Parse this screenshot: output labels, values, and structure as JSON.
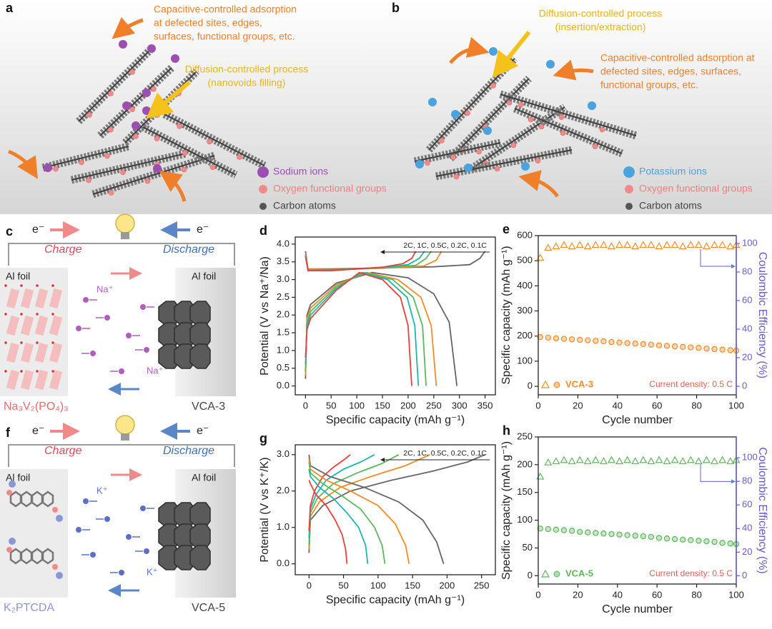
{
  "panel_a": {
    "label": "a",
    "capacitive_note": [
      "Capacitive-controlled adsorption",
      "at defected sites, edges,",
      "surfaces, functional groups, etc."
    ],
    "diffusion_note": [
      "Diffusion-controlled process",
      "(nanovoids filling)"
    ],
    "legend": [
      "Sodium ions",
      "Oxygen functional groups",
      "Carbon atoms"
    ]
  },
  "panel_b": {
    "label": "b",
    "diffusion_note": [
      "Diffusion-controlled process",
      "(insertion/extraction)"
    ],
    "capacitive_note": [
      "Capacitive-controlled adsorption at",
      "defected sites, edges, surfaces,",
      "functional groups, etc."
    ],
    "legend": [
      "Potassium ions",
      "Oxygen functional groups",
      "Carbon atoms"
    ]
  },
  "panel_c": {
    "label": "c",
    "electron_left": "e⁻",
    "electron_right": "e⁻",
    "charge": "Charge",
    "discharge": "Discharge",
    "foil_left": "Al foil",
    "foil_right": "Al foil",
    "ion_labels": [
      "Na⁺",
      "Na⁺"
    ],
    "cathode": "Na₃V₂(PO₄)₃",
    "anode": "VCA-3"
  },
  "panel_f": {
    "label": "f",
    "electron_left": "e⁻",
    "electron_right": "e⁻",
    "charge": "Charge",
    "discharge": "Discharge",
    "foil_left": "Al foil",
    "foil_right": "Al foil",
    "ion_labels": [
      "K⁺",
      "K⁺"
    ],
    "cathode": "K₂PTCDA",
    "anode": "VCA-5"
  },
  "chart_data": [
    {
      "type": "line",
      "label": "d",
      "xlabel": "Specific capacity (mAh g⁻¹)",
      "ylabel": "Potential (V vs Na⁺/Na)",
      "annotation": "2C, 1C, 0.5C, 0.2C, 0.1C",
      "xlim": [
        -20,
        370
      ],
      "ylim": [
        -0.25,
        4.2
      ],
      "xticks": [
        0,
        50,
        100,
        150,
        200,
        250,
        300,
        350
      ],
      "yticks": [
        {
          "value": 0,
          "label": "0.0"
        },
        0.5,
        {
          "value": 1,
          "label": "1.0"
        },
        1.5,
        {
          "value": 2,
          "label": "2.0"
        },
        2.5,
        {
          "value": 3,
          "label": "3.0"
        },
        3.5,
        {
          "value": 4,
          "label": "4.0"
        }
      ],
      "series": [
        {
          "color": "#666666",
          "x": [
            0,
            5,
            50,
            150,
            250,
            320,
            340,
            350
          ],
          "values": [
            3.8,
            3.3,
            3.3,
            3.33,
            3.36,
            3.42,
            3.6,
            3.8
          ]
        },
        {
          "color": "#f28c28",
          "x": [
            0,
            5,
            50,
            150,
            230,
            255,
            265
          ],
          "values": [
            3.75,
            3.3,
            3.28,
            3.32,
            3.38,
            3.55,
            3.8
          ]
        },
        {
          "color": "#5cb85c",
          "x": [
            0,
            5,
            50,
            150,
            215,
            235,
            245
          ],
          "values": [
            3.7,
            3.28,
            3.27,
            3.33,
            3.4,
            3.6,
            3.8
          ]
        },
        {
          "color": "#1fb5ad",
          "x": [
            0,
            5,
            50,
            150,
            200,
            222,
            232
          ],
          "values": [
            3.7,
            3.27,
            3.26,
            3.34,
            3.42,
            3.6,
            3.8
          ]
        },
        {
          "color": "#e8413c",
          "x": [
            0,
            5,
            50,
            150,
            190,
            207,
            215
          ],
          "values": [
            3.65,
            3.25,
            3.25,
            3.35,
            3.45,
            3.6,
            3.8
          ]
        },
        {
          "color": "#666666",
          "x": [
            0,
            3,
            10,
            60,
            130,
            200,
            250,
            280,
            295
          ],
          "values": [
            0.2,
            2.0,
            2.3,
            2.9,
            3.2,
            3.05,
            2.6,
            1.8,
            0.0
          ]
        },
        {
          "color": "#f28c28",
          "x": [
            0,
            3,
            10,
            60,
            120,
            180,
            225,
            245,
            255
          ],
          "values": [
            0.3,
            1.9,
            2.2,
            2.85,
            3.2,
            3.0,
            2.5,
            1.7,
            0.0
          ]
        },
        {
          "color": "#5cb85c",
          "x": [
            0,
            3,
            10,
            60,
            115,
            170,
            210,
            228,
            235
          ],
          "values": [
            0.4,
            1.8,
            2.1,
            2.8,
            3.2,
            3.0,
            2.5,
            1.7,
            0.0
          ]
        },
        {
          "color": "#1fb5ad",
          "x": [
            0,
            3,
            10,
            60,
            110,
            160,
            198,
            213,
            220
          ],
          "values": [
            0.6,
            1.7,
            2.0,
            2.75,
            3.2,
            3.0,
            2.5,
            1.7,
            0.0
          ]
        },
        {
          "color": "#e8413c",
          "x": [
            0,
            3,
            10,
            60,
            105,
            150,
            185,
            200,
            207
          ],
          "values": [
            0.8,
            1.6,
            1.9,
            2.7,
            3.2,
            3.0,
            2.5,
            1.7,
            0.0
          ]
        }
      ]
    },
    {
      "type": "dual_scatter",
      "label": "e",
      "xlabel": "Cycle number",
      "ylabel": "Specific capacity (mAh g⁻¹)",
      "y2label": "Coulombic Efficiency (%)",
      "legend": "VCA-3",
      "note": "Current density: 0.5 C",
      "xlim": [
        0,
        100
      ],
      "ylim": [
        -34,
        600
      ],
      "y2lim": [
        -6,
        105.5
      ],
      "xticks": [
        0,
        20,
        40,
        60,
        80,
        100
      ],
      "yticks": [
        0,
        100,
        200,
        300,
        400,
        500,
        600
      ],
      "y2ticks": [
        0,
        20,
        40,
        60,
        80,
        100
      ],
      "x": [
        1,
        5,
        9,
        13,
        17,
        21,
        25,
        29,
        33,
        37,
        41,
        45,
        49,
        53,
        57,
        61,
        65,
        69,
        73,
        77,
        81,
        85,
        89,
        93,
        97,
        100
      ],
      "series": [
        {
          "color": "#f28c28",
          "marker": "circle",
          "values": [
            196,
            194,
            191,
            189,
            187,
            185,
            183,
            181,
            179,
            176,
            174,
            172,
            170,
            168,
            166,
            163,
            161,
            159,
            157,
            155,
            153,
            150,
            148,
            146,
            144,
            142
          ]
        },
        {
          "color": "#f28c28",
          "marker": "triangle",
          "axis": "y2",
          "values": [
            90,
            97,
            98,
            99,
            98,
            99,
            98,
            99,
            99,
            98,
            99,
            99,
            98,
            99,
            99,
            98,
            99,
            99,
            98,
            99,
            99,
            98,
            99,
            99,
            98,
            99
          ]
        }
      ]
    },
    {
      "type": "line",
      "label": "g",
      "xlabel": "Specific capacity (mAh g⁻¹)",
      "ylabel": "Potential (V vs K⁺/K)",
      "annotation": "2C, 1C, 0.5C, 0.2C, 0.1C",
      "xlim": [
        -20,
        270
      ],
      "ylim": [
        -0.3,
        3.27
      ],
      "xticks": [
        0,
        50,
        100,
        150,
        200,
        250
      ],
      "yticks": [
        {
          "value": 0,
          "label": "0.0"
        },
        {
          "value": 1,
          "label": "1.0"
        },
        {
          "value": 2,
          "label": "2.0"
        },
        {
          "value": 3,
          "label": "3.0"
        }
      ],
      "series": [
        {
          "color": "#666666",
          "x": [
            0,
            2,
            20,
            60,
            120,
            180,
            230,
            255
          ],
          "values": [
            0.3,
            1.2,
            1.6,
            2.0,
            2.3,
            2.55,
            2.8,
            3.0
          ]
        },
        {
          "color": "#f28c28",
          "x": [
            0,
            2,
            15,
            45,
            90,
            140,
            175
          ],
          "values": [
            0.4,
            1.3,
            1.7,
            2.1,
            2.4,
            2.7,
            3.0
          ]
        },
        {
          "color": "#5cb85c",
          "x": [
            0,
            2,
            12,
            35,
            70,
            105,
            130
          ],
          "values": [
            0.5,
            1.4,
            1.8,
            2.2,
            2.5,
            2.75,
            3.0
          ]
        },
        {
          "color": "#1fb5ad",
          "x": [
            0,
            2,
            10,
            25,
            50,
            75,
            95
          ],
          "values": [
            0.7,
            1.5,
            1.9,
            2.3,
            2.6,
            2.8,
            3.0
          ]
        },
        {
          "color": "#e8413c",
          "x": [
            0,
            2,
            8,
            20,
            35,
            50,
            60
          ],
          "values": [
            0.9,
            1.6,
            2.0,
            2.4,
            2.65,
            2.85,
            3.0
          ]
        },
        {
          "color": "#666666",
          "x": [
            0,
            2,
            30,
            80,
            130,
            165,
            185,
            195
          ],
          "values": [
            3.0,
            2.7,
            2.4,
            2.1,
            1.7,
            1.2,
            0.6,
            0.0
          ]
        },
        {
          "color": "#f28c28",
          "x": [
            0,
            2,
            25,
            60,
            100,
            125,
            140,
            145
          ],
          "values": [
            2.9,
            2.6,
            2.3,
            2.0,
            1.6,
            1.1,
            0.5,
            0.0
          ]
        },
        {
          "color": "#5cb85c",
          "x": [
            0,
            2,
            20,
            45,
            75,
            95,
            106,
            110
          ],
          "values": [
            2.8,
            2.5,
            2.2,
            1.9,
            1.5,
            1.0,
            0.5,
            0.0
          ]
        },
        {
          "color": "#1fb5ad",
          "x": [
            0,
            2,
            15,
            35,
            55,
            72,
            82,
            85
          ],
          "values": [
            2.6,
            2.4,
            2.1,
            1.8,
            1.4,
            1.0,
            0.5,
            0.0
          ]
        },
        {
          "color": "#e8413c",
          "x": [
            0,
            2,
            10,
            25,
            38,
            48,
            53,
            55
          ],
          "values": [
            2.3,
            2.2,
            1.9,
            1.6,
            1.2,
            0.8,
            0.4,
            0.0
          ]
        }
      ]
    },
    {
      "type": "dual_scatter",
      "label": "h",
      "xlabel": "Cycle number",
      "ylabel": "Specific capacity (mAh g⁻¹)",
      "y2label": "Coulombic Efficiency (%)",
      "legend": "VCA-5",
      "note": "Current density: 0.5 C",
      "xlim": [
        0,
        100
      ],
      "ylim": [
        -15,
        250
      ],
      "y2lim": [
        -7,
        117.6
      ],
      "xticks": [
        0,
        20,
        40,
        60,
        80,
        100
      ],
      "yticks": [
        0,
        50,
        100,
        150,
        200,
        250
      ],
      "y2ticks": [
        0,
        20,
        40,
        60,
        80,
        100
      ],
      "x": [
        1,
        5,
        9,
        13,
        17,
        21,
        25,
        29,
        33,
        37,
        41,
        45,
        49,
        53,
        57,
        61,
        65,
        69,
        73,
        77,
        81,
        85,
        89,
        93,
        97,
        100
      ],
      "series": [
        {
          "color": "#5cb85c",
          "marker": "circle",
          "values": [
            85,
            84,
            83,
            82,
            81,
            79,
            78,
            77,
            76,
            75,
            74,
            73,
            72,
            71,
            70,
            68,
            67,
            66,
            65,
            64,
            63,
            62,
            61,
            59,
            58,
            57
          ]
        },
        {
          "color": "#5cb85c",
          "marker": "triangle",
          "axis": "y2",
          "values": [
            84,
            96,
            97,
            98,
            97,
            98,
            97,
            98,
            97,
            98,
            97,
            98,
            97,
            98,
            97,
            98,
            97,
            98,
            97,
            98,
            97,
            98,
            97,
            98,
            97,
            98
          ]
        }
      ]
    }
  ]
}
